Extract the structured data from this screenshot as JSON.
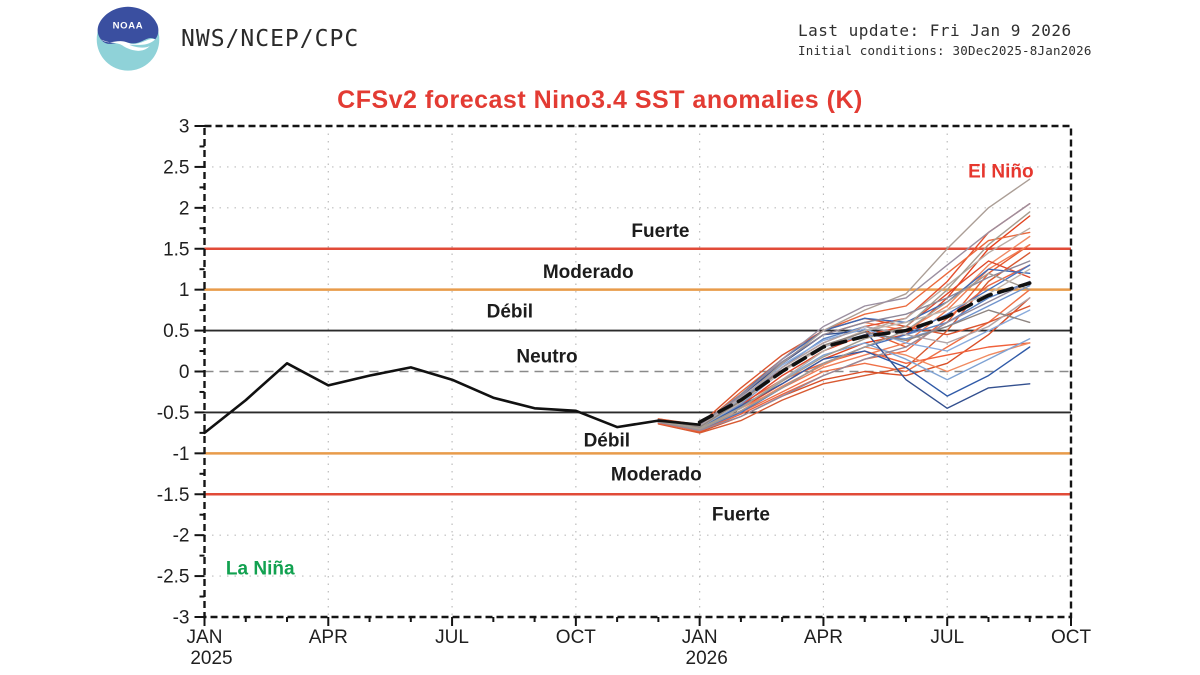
{
  "header": {
    "logo_text": "NOAA",
    "agency": "NWS/NCEP/CPC",
    "last_update": "Last update: Fri Jan 9 2026",
    "initial_conditions": "Initial conditions: 30Dec2025-8Jan2026"
  },
  "title": "CFSv2 forecast Nino3.4 SST anomalies (K)",
  "colors": {
    "title_red": "#e33b33",
    "strong_threshold_red": "#e14b38",
    "moderate_threshold_orange": "#e89b4a",
    "weak_threshold_black": "#2b2b2b",
    "zero_line_gray": "#8a8a8a",
    "el_nino_red": "#e6372e",
    "la_nina_green": "#12a150",
    "logo_dark_blue": "#3a4fa0",
    "logo_cyan": "#8fd2d8"
  },
  "chart_data": {
    "type": "line",
    "title": "CFSv2 forecast Nino3.4 SST anomalies (K)",
    "xlabel": "",
    "ylabel": "",
    "ylim": [
      -3,
      3
    ],
    "x_months_range": [
      "JAN 2025",
      "OCT 2026"
    ],
    "grid": {
      "h_dotted_values": [
        2.5,
        2,
        -2,
        -2.5
      ],
      "v_dotted_months": [
        3,
        6,
        9,
        12,
        15,
        18
      ]
    },
    "y_ticks": [
      {
        "v": 3,
        "label": "3"
      },
      {
        "v": 2.5,
        "label": "2.5"
      },
      {
        "v": 2,
        "label": "2"
      },
      {
        "v": 1.5,
        "label": "1.5"
      },
      {
        "v": 1,
        "label": "1"
      },
      {
        "v": 0.5,
        "label": "0.5"
      },
      {
        "v": 0,
        "label": "0"
      },
      {
        "v": -0.5,
        "label": "-0.5"
      },
      {
        "v": -1,
        "label": "-1"
      },
      {
        "v": -1.5,
        "label": "-1.5"
      },
      {
        "v": -2,
        "label": "-2"
      },
      {
        "v": -2.5,
        "label": "-2.5"
      },
      {
        "v": -3,
        "label": "-3"
      }
    ],
    "x_ticks": [
      {
        "m": 0,
        "label": "JAN",
        "year": "2025"
      },
      {
        "m": 3,
        "label": "APR"
      },
      {
        "m": 6,
        "label": "JUL"
      },
      {
        "m": 9,
        "label": "OCT"
      },
      {
        "m": 12,
        "label": "JAN",
        "year": "2026"
      },
      {
        "m": 15,
        "label": "APR"
      },
      {
        "m": 18,
        "label": "JUL"
      },
      {
        "m": 21,
        "label": "OCT"
      }
    ],
    "thresholds": [
      {
        "value": 1.5,
        "color": "#e14b38",
        "width": 2.5
      },
      {
        "value": 1.0,
        "color": "#e89b4a",
        "width": 2.5
      },
      {
        "value": 0.5,
        "color": "#2b2b2b",
        "width": 1.8
      },
      {
        "value": 0.0,
        "color": "#8a8a8a",
        "width": 1.6,
        "dash": "9,6"
      },
      {
        "value": -0.5,
        "color": "#2b2b2b",
        "width": 1.8
      },
      {
        "value": -1.0,
        "color": "#e89b4a",
        "width": 2.5
      },
      {
        "value": -1.5,
        "color": "#e14b38",
        "width": 2.5
      }
    ],
    "zone_labels": [
      {
        "name": "zone-label-fuerte-upper",
        "text": "Fuerte",
        "m": 11.05,
        "v": 1.72,
        "color": "#1c1c1c"
      },
      {
        "name": "zone-label-moderado-upper",
        "text": "Moderado",
        "m": 9.3,
        "v": 1.22,
        "color": "#1c1c1c"
      },
      {
        "name": "zone-label-debil-upper",
        "text": "Débil",
        "m": 7.4,
        "v": 0.74,
        "color": "#1c1c1c"
      },
      {
        "name": "zone-label-neutro",
        "text": "Neutro",
        "m": 8.3,
        "v": 0.19,
        "color": "#1c1c1c"
      },
      {
        "name": "zone-label-debil-lower",
        "text": "Débil",
        "m": 9.75,
        "v": -0.84,
        "color": "#1c1c1c"
      },
      {
        "name": "zone-label-moderado-lower",
        "text": "Moderado",
        "m": 10.95,
        "v": -1.25,
        "color": "#1c1c1c"
      },
      {
        "name": "zone-label-fuerte-lower",
        "text": "Fuerte",
        "m": 13.0,
        "v": -1.74,
        "color": "#1c1c1c"
      },
      {
        "name": "el-nino-label",
        "text": "El Niño",
        "m": 19.3,
        "v": 2.45,
        "color": "#e6372e"
      },
      {
        "name": "la-nina-label",
        "text": "La Niña",
        "m": 1.35,
        "v": -2.4,
        "color": "#12a150"
      }
    ],
    "observed": {
      "name": "observed Nino3.4 SST anomaly",
      "color": "#111111",
      "width": 2.6,
      "start_month": 0,
      "values": [
        -0.75,
        -0.35,
        0.1,
        -0.17,
        -0.05,
        0.05,
        -0.1,
        -0.32,
        -0.45,
        -0.48,
        -0.68,
        -0.6,
        -0.65
      ]
    },
    "ensemble_mean": {
      "name": "CFSv2 ensemble mean forecast",
      "color": "#111111",
      "width": 3.6,
      "dash": "14,8",
      "start_month": 12,
      "values": [
        -0.62,
        -0.35,
        0.0,
        0.3,
        0.43,
        0.5,
        0.67,
        0.93,
        1.08
      ]
    },
    "members_start_month": 11,
    "members": [
      {
        "color": "#e2431e",
        "values": [
          -0.62,
          -0.7,
          -0.45,
          -0.15,
          0.15,
          0.35,
          0.45,
          0.9,
          1.5,
          1.9
        ]
      },
      {
        "color": "#e85c30",
        "values": [
          -0.6,
          -0.68,
          -0.35,
          0.0,
          0.3,
          0.5,
          0.3,
          0.6,
          1.2,
          1.55
        ]
      },
      {
        "color": "#ef7046",
        "values": [
          -0.63,
          -0.72,
          -0.5,
          -0.25,
          0.0,
          0.1,
          0.0,
          0.3,
          0.6,
          1.0
        ]
      },
      {
        "color": "#ef8a64",
        "values": [
          -0.58,
          -0.66,
          -0.3,
          0.1,
          0.45,
          0.6,
          0.5,
          0.8,
          1.3,
          1.65
        ]
      },
      {
        "color": "#d94f28",
        "values": [
          -0.61,
          -0.74,
          -0.55,
          -0.3,
          -0.1,
          0.0,
          -0.05,
          0.1,
          0.45,
          0.9
        ]
      },
      {
        "color": "#f0603a",
        "values": [
          -0.6,
          -0.7,
          -0.4,
          -0.1,
          0.1,
          0.25,
          0.1,
          0.2,
          0.3,
          0.35
        ]
      },
      {
        "color": "#e4502f",
        "values": [
          -0.62,
          -0.69,
          -0.38,
          0.05,
          0.35,
          0.55,
          0.65,
          1.1,
          1.7,
          2.05
        ]
      },
      {
        "color": "#ea6a3d",
        "values": [
          -0.59,
          -0.67,
          -0.25,
          0.15,
          0.5,
          0.7,
          0.8,
          1.2,
          1.6,
          1.7
        ]
      },
      {
        "color": "#d85a32",
        "values": [
          -0.64,
          -0.75,
          -0.6,
          -0.35,
          -0.15,
          -0.05,
          0.05,
          0.5,
          1.1,
          1.45
        ]
      },
      {
        "color": "#f07d55",
        "values": [
          -0.6,
          -0.71,
          -0.45,
          -0.2,
          0.05,
          0.2,
          0.35,
          0.75,
          1.25,
          1.55
        ]
      },
      {
        "color": "#e0482a",
        "values": [
          -0.61,
          -0.68,
          -0.42,
          -0.05,
          0.25,
          0.45,
          0.55,
          0.95,
          1.35,
          1.15
        ]
      },
      {
        "color": "#ec6644",
        "values": [
          -0.63,
          -0.73,
          -0.52,
          -0.28,
          -0.05,
          0.15,
          0.25,
          0.65,
          1.05,
          1.3
        ]
      },
      {
        "color": "#db542e",
        "values": [
          -0.58,
          -0.65,
          -0.2,
          0.2,
          0.5,
          0.65,
          0.55,
          0.45,
          0.6,
          0.8
        ]
      },
      {
        "color": "#f08a60",
        "values": [
          -0.62,
          -0.7,
          -0.48,
          -0.18,
          0.08,
          0.3,
          0.2,
          0.0,
          0.2,
          0.35
        ]
      },
      {
        "color": "#3f6ab5",
        "values": [
          -0.6,
          -0.66,
          -0.28,
          0.15,
          0.5,
          0.65,
          0.6,
          0.85,
          1.25,
          1.2
        ]
      },
      {
        "color": "#5b83c4",
        "values": [
          -0.61,
          -0.68,
          -0.35,
          0.05,
          0.4,
          0.55,
          0.45,
          0.6,
          0.9,
          1.1
        ]
      },
      {
        "color": "#7fa3d4",
        "values": [
          -0.62,
          -0.7,
          -0.45,
          -0.1,
          0.2,
          0.35,
          0.15,
          -0.1,
          0.15,
          0.4
        ]
      },
      {
        "color": "#33508f",
        "values": [
          -0.59,
          -0.67,
          -0.3,
          0.1,
          0.45,
          0.5,
          -0.1,
          -0.45,
          -0.2,
          -0.15
        ]
      },
      {
        "color": "#6f93cc",
        "values": [
          -0.6,
          -0.69,
          -0.4,
          0.0,
          0.3,
          0.45,
          0.4,
          0.55,
          0.8,
          1.05
        ]
      },
      {
        "color": "#4a74be",
        "values": [
          -0.62,
          -0.71,
          -0.5,
          -0.2,
          0.1,
          0.3,
          0.45,
          0.7,
          1.0,
          1.3
        ]
      },
      {
        "color": "#8aabdc",
        "values": [
          -0.61,
          -0.68,
          -0.33,
          0.08,
          0.38,
          0.52,
          0.35,
          0.25,
          0.5,
          0.75
        ]
      },
      {
        "color": "#2f5aa8",
        "values": [
          -0.6,
          -0.7,
          -0.42,
          -0.15,
          0.15,
          0.25,
          0.05,
          -0.3,
          -0.05,
          0.3
        ]
      },
      {
        "color": "#ab9e96",
        "values": [
          -0.61,
          -0.69,
          -0.35,
          0.1,
          0.5,
          0.75,
          0.95,
          1.5,
          2.0,
          2.35
        ]
      },
      {
        "color": "#9b8fa0",
        "values": [
          -0.6,
          -0.68,
          -0.3,
          0.15,
          0.55,
          0.8,
          0.9,
          1.3,
          1.7,
          2.05
        ]
      },
      {
        "color": "#b8aca4",
        "values": [
          -0.62,
          -0.7,
          -0.45,
          -0.1,
          0.25,
          0.5,
          0.65,
          1.05,
          1.45,
          1.75
        ]
      },
      {
        "color": "#8e8798",
        "values": [
          -0.59,
          -0.66,
          -0.28,
          0.12,
          0.45,
          0.6,
          0.7,
          0.9,
          1.15,
          1.35
        ]
      },
      {
        "color": "#a39a92",
        "values": [
          -0.61,
          -0.71,
          -0.48,
          -0.2,
          0.1,
          0.3,
          0.5,
          0.85,
          1.2,
          1.0
        ]
      },
      {
        "color": "#c0b5ad",
        "values": [
          -0.6,
          -0.68,
          -0.38,
          0.0,
          0.3,
          0.5,
          0.6,
          0.75,
          0.95,
          1.25
        ]
      },
      {
        "color": "#948a9c",
        "values": [
          -0.62,
          -0.72,
          -0.55,
          -0.3,
          -0.05,
          0.15,
          0.3,
          0.6,
          0.85,
          1.1
        ]
      },
      {
        "color": "#b0a5a8",
        "values": [
          -0.6,
          -0.67,
          -0.32,
          0.05,
          0.35,
          0.55,
          0.45,
          0.35,
          0.55,
          0.9
        ]
      },
      {
        "color": "#a59c8f",
        "values": [
          -0.61,
          -0.7,
          -0.44,
          -0.12,
          0.18,
          0.4,
          0.55,
          1.0,
          1.55,
          1.95
        ]
      },
      {
        "color": "#8d8480",
        "values": [
          -0.59,
          -0.68,
          -0.36,
          0.02,
          0.32,
          0.48,
          0.38,
          0.55,
          0.75,
          0.6
        ]
      }
    ]
  }
}
